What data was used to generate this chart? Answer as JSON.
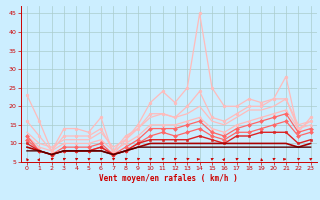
{
  "title": "",
  "xlabel": "Vent moyen/en rafales ( km/h )",
  "xlim_min": -0.5,
  "xlim_max": 23.5,
  "ylim": [
    5,
    47
  ],
  "yticks": [
    5,
    10,
    15,
    20,
    25,
    30,
    35,
    40,
    45
  ],
  "xticks": [
    0,
    1,
    2,
    3,
    4,
    5,
    6,
    7,
    8,
    9,
    10,
    11,
    12,
    13,
    14,
    15,
    16,
    17,
    18,
    19,
    20,
    21,
    22,
    23
  ],
  "background_color": "#cceeff",
  "grid_color": "#aacccc",
  "lines": [
    {
      "y": [
        23,
        16,
        8,
        14,
        14,
        13,
        17,
        7,
        11,
        15,
        21,
        24,
        21,
        25,
        45,
        25,
        20,
        20,
        22,
        21,
        22,
        28,
        13,
        17
      ],
      "color": "#ffbbbb",
      "lw": 0.9,
      "marker": "o",
      "ms": 2.0
    },
    {
      "y": [
        16,
        12,
        8,
        12,
        12,
        12,
        14,
        8,
        12,
        14,
        18,
        18,
        17,
        20,
        24,
        17,
        16,
        18,
        20,
        20,
        22,
        22,
        14,
        16
      ],
      "color": "#ffbbbb",
      "lw": 0.9,
      "marker": "o",
      "ms": 2.0
    },
    {
      "y": [
        13,
        10,
        9,
        11,
        11,
        11,
        13,
        9,
        11,
        14,
        17,
        18,
        17,
        18,
        20,
        16,
        15,
        17,
        19,
        19,
        20,
        22,
        15,
        16
      ],
      "color": "#ffbbbb",
      "lw": 0.9,
      "marker": null,
      "ms": 0
    },
    {
      "y": [
        12,
        9,
        8,
        10,
        10,
        10,
        11,
        8,
        10,
        12,
        15,
        15,
        15,
        16,
        17,
        14,
        13,
        15,
        16,
        17,
        18,
        19,
        14,
        15
      ],
      "color": "#ffbbbb",
      "lw": 0.9,
      "marker": "^",
      "ms": 2.0
    },
    {
      "y": [
        12,
        8,
        7,
        9,
        9,
        9,
        10,
        7,
        9,
        11,
        14,
        14,
        14,
        15,
        16,
        13,
        12,
        14,
        15,
        16,
        17,
        18,
        13,
        14
      ],
      "color": "#ff6666",
      "lw": 0.9,
      "marker": "D",
      "ms": 2.0
    },
    {
      "y": [
        11,
        8,
        7,
        8,
        8,
        8,
        9,
        7,
        8,
        10,
        12,
        13,
        12,
        13,
        14,
        12,
        11,
        13,
        13,
        14,
        15,
        16,
        12,
        13
      ],
      "color": "#ff6666",
      "lw": 0.9,
      "marker": "D",
      "ms": 2.0
    },
    {
      "y": [
        10,
        8,
        7,
        8,
        8,
        8,
        9,
        7,
        8,
        10,
        11,
        11,
        11,
        11,
        12,
        11,
        10,
        12,
        12,
        13,
        13,
        13,
        10,
        11
      ],
      "color": "#dd2222",
      "lw": 1.0,
      "marker": "s",
      "ms": 2.0
    },
    {
      "y": [
        9,
        8,
        7,
        8,
        8,
        8,
        8,
        7,
        8,
        9,
        10,
        10,
        10,
        10,
        10,
        10,
        10,
        10,
        10,
        10,
        10,
        10,
        9,
        10
      ],
      "color": "#aa0000",
      "lw": 1.2,
      "marker": null,
      "ms": 0
    },
    {
      "y": [
        8,
        8,
        7,
        8,
        8,
        8,
        8,
        7,
        8,
        9,
        9,
        9,
        9,
        9,
        9,
        9,
        9,
        9,
        9,
        9,
        9,
        9,
        9,
        9
      ],
      "color": "#550000",
      "lw": 1.0,
      "marker": null,
      "ms": 0
    }
  ],
  "arrows": {
    "angles_deg": [
      190,
      170,
      135,
      140,
      140,
      140,
      140,
      140,
      135,
      135,
      140,
      140,
      140,
      135,
      115,
      145,
      165,
      140,
      140,
      185,
      140,
      115,
      140,
      145
    ]
  }
}
